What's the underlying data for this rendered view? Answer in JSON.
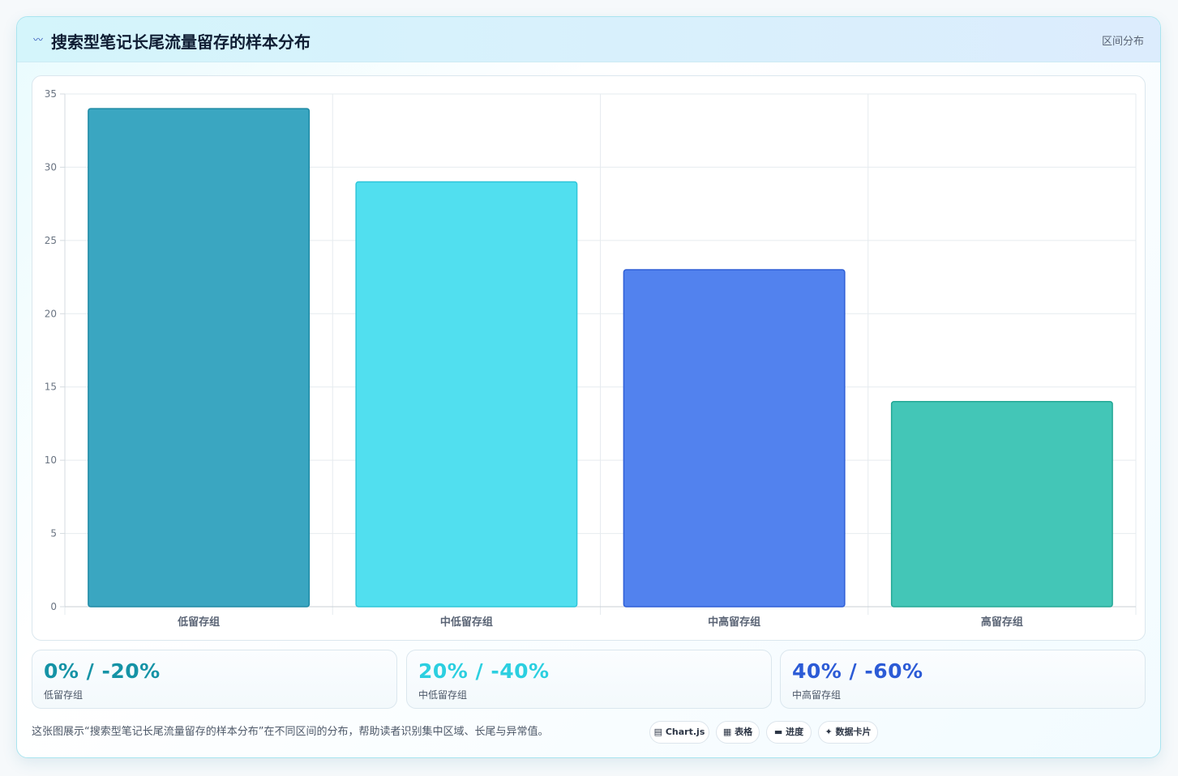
{
  "header": {
    "icon": "sparkline-icon",
    "title": "搜索型笔记长尾流量留存的样本分布",
    "badge": "区间分布"
  },
  "chart_data": {
    "type": "bar",
    "categories": [
      "低留存组",
      "中低留存组",
      "中高留存组",
      "高留存组"
    ],
    "values": [
      34,
      29,
      23,
      14
    ],
    "colors": [
      "#3aa6c1",
      "#51dfef",
      "#5282ee",
      "#43c6b7"
    ],
    "border_colors": [
      "#1f8aa5",
      "#2fc6d9",
      "#2f5fd6",
      "#25a896"
    ],
    "ylim": [
      0,
      35
    ],
    "yticks": [
      0,
      5,
      10,
      15,
      20,
      25,
      30,
      35
    ],
    "grid": true,
    "title": "",
    "xlabel": "",
    "ylabel": ""
  },
  "stats": [
    {
      "value": "0% / -20%",
      "label": "低留存组",
      "color": "#1593a6"
    },
    {
      "value": "20% / -40%",
      "label": "中低留存组",
      "color": "#2ccfe0"
    },
    {
      "value": "40% / -60%",
      "label": "中高留存组",
      "color": "#2c5bd6"
    }
  ],
  "footer": {
    "note": "这张图展示“搜索型笔记长尾流量留存的样本分布”在不同区间的分布，帮助读者识别集中区域、长尾与异常值。",
    "chips": [
      {
        "icon": "chart-icon",
        "label": "Chart.js"
      },
      {
        "icon": "table-icon",
        "label": "表格"
      },
      {
        "icon": "progress-icon",
        "label": "进度"
      },
      {
        "icon": "sparkle-icon",
        "label": "数据卡片"
      }
    ]
  }
}
